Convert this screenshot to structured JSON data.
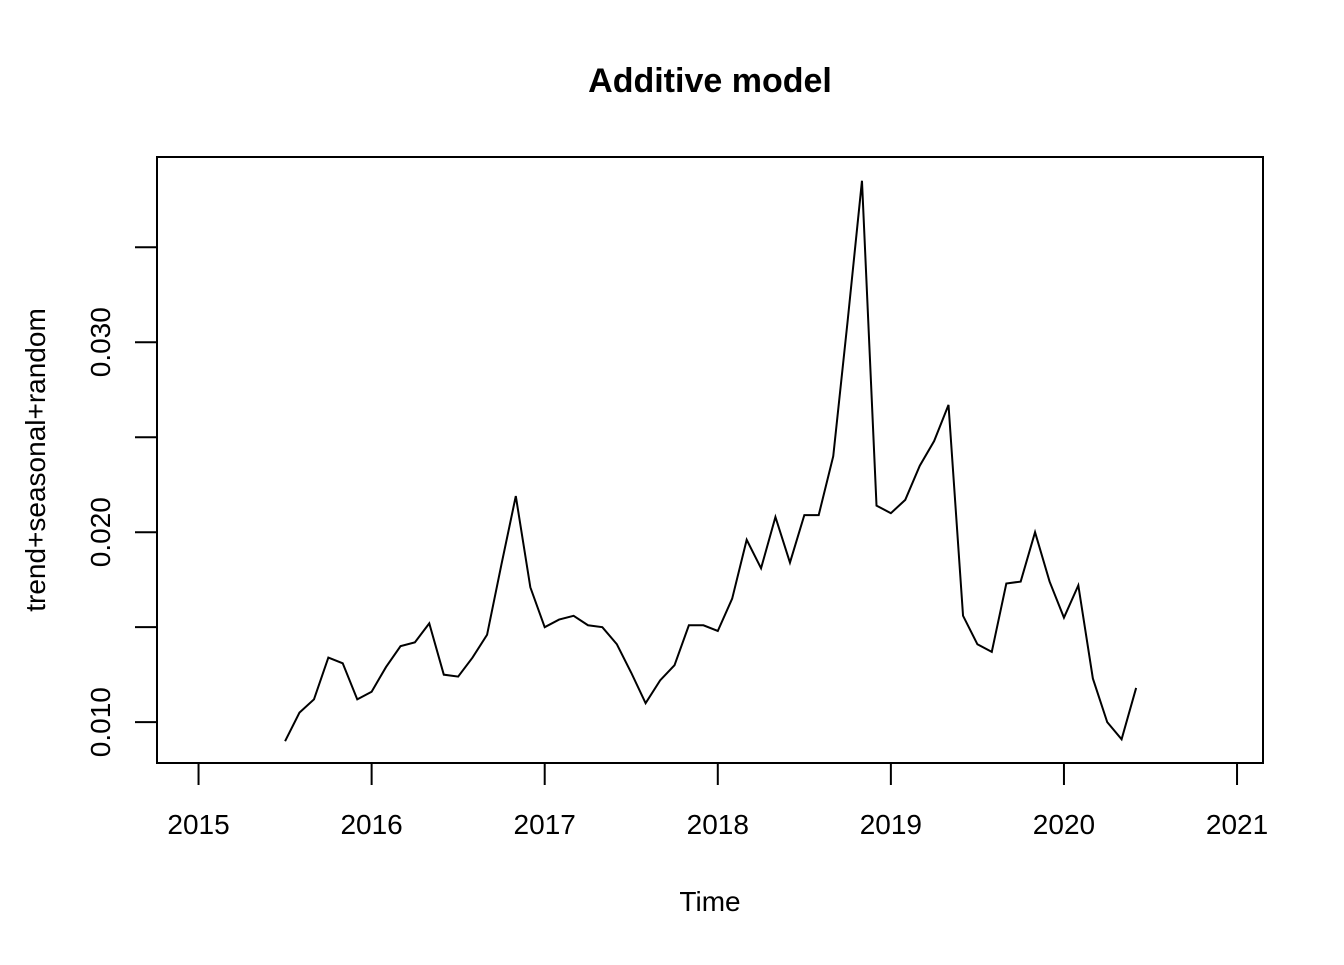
{
  "chart_data": {
    "type": "line",
    "title": "Additive model",
    "xlabel": "Time",
    "ylabel": "trend+seasonal+random",
    "xlim": [
      2014.76,
      2021.15
    ],
    "ylim": [
      0.00785,
      0.03975
    ],
    "x_ticks": [
      2015,
      2016,
      2017,
      2018,
      2019,
      2020,
      2021
    ],
    "x_tick_labels": [
      "2015",
      "2016",
      "2017",
      "2018",
      "2019",
      "2020",
      "2021"
    ],
    "y_ticks": [
      0.01,
      0.015,
      0.02,
      0.025,
      0.03,
      0.035
    ],
    "y_tick_labels": [
      "0.010",
      "",
      "0.020",
      "",
      "0.030",
      ""
    ],
    "grid": false,
    "line_color": "#000000",
    "series": [
      {
        "x": [
          2015.5,
          2015.583,
          2015.667,
          2015.75,
          2015.833,
          2015.917,
          2016.0,
          2016.083,
          2016.167,
          2016.25,
          2016.333,
          2016.417,
          2016.5,
          2016.583,
          2016.667,
          2016.75,
          2016.833,
          2016.917,
          2017.0,
          2017.083,
          2017.167,
          2017.25,
          2017.333,
          2017.417,
          2017.5,
          2017.583,
          2017.667,
          2017.75,
          2017.833,
          2017.917,
          2018.0,
          2018.083,
          2018.167,
          2018.25,
          2018.333,
          2018.417,
          2018.5,
          2018.583,
          2018.667,
          2018.75,
          2018.833,
          2018.917,
          2019.0,
          2019.083,
          2019.167,
          2019.25,
          2019.333,
          2019.417,
          2019.5,
          2019.583,
          2019.667,
          2019.75,
          2019.833,
          2019.917,
          2020.0,
          2020.083,
          2020.167,
          2020.25,
          2020.333,
          2020.417
        ],
        "values": [
          0.009,
          0.0105,
          0.0112,
          0.0134,
          0.0131,
          0.0112,
          0.0116,
          0.0129,
          0.014,
          0.0142,
          0.0152,
          0.0125,
          0.0124,
          0.0134,
          0.0146,
          0.0183,
          0.0219,
          0.0171,
          0.015,
          0.0154,
          0.0156,
          0.0151,
          0.015,
          0.0141,
          0.0126,
          0.011,
          0.0122,
          0.013,
          0.0151,
          0.0151,
          0.0148,
          0.0165,
          0.0196,
          0.0181,
          0.0208,
          0.0184,
          0.0209,
          0.0209,
          0.024,
          0.0311,
          0.0385,
          0.0214,
          0.021,
          0.0217,
          0.0235,
          0.0248,
          0.0267,
          0.0156,
          0.0141,
          0.0137,
          0.0173,
          0.0174,
          0.02,
          0.0174,
          0.0155,
          0.0172,
          0.0123,
          0.01,
          0.0091,
          0.0118
        ]
      }
    ]
  }
}
